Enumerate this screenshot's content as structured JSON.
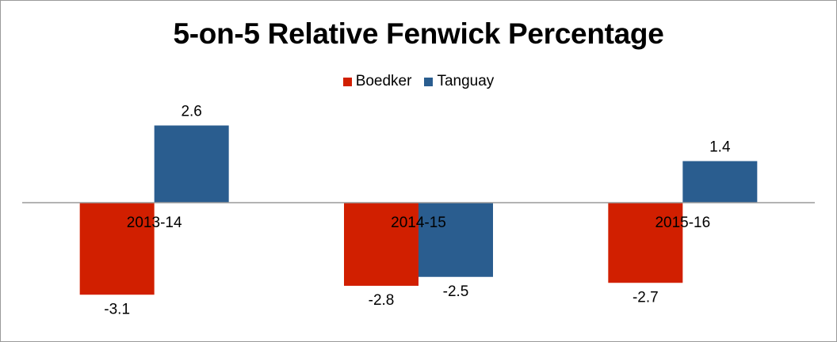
{
  "chart_data": {
    "type": "bar",
    "title": "5-on-5 Relative Fenwick Percentage",
    "categories": [
      "2013-14",
      "2014-15",
      "2015-16"
    ],
    "series": [
      {
        "name": "Boedker",
        "color": "#d11f00",
        "values": [
          -3.1,
          -2.8,
          -2.7
        ],
        "labels": [
          "-3.1",
          "-2.8",
          "-2.7"
        ]
      },
      {
        "name": "Tanguay",
        "color": "#2a5d8f",
        "values": [
          2.6,
          -2.5,
          1.4
        ],
        "labels": [
          "2.6",
          "-2.5",
          "1.4"
        ]
      }
    ],
    "xlabel": "",
    "ylabel": "",
    "ylim": [
      -5,
      5
    ],
    "grid": false,
    "legend": "top-center"
  }
}
